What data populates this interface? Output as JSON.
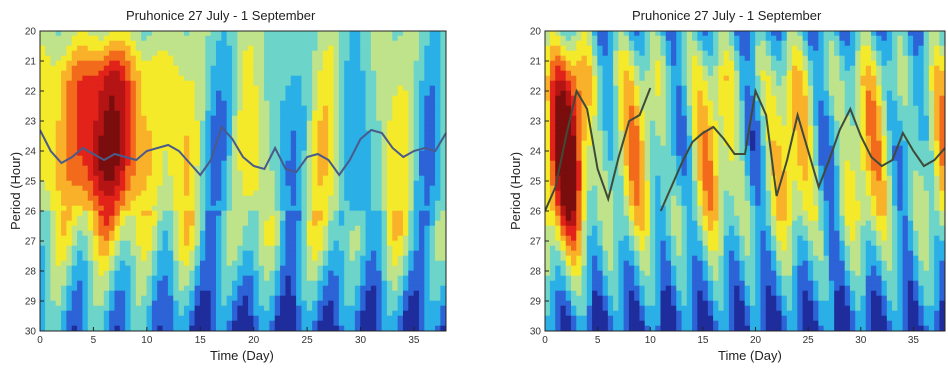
{
  "chart_data": [
    {
      "type": "heatmap",
      "title": "Pruhonice 27 July - 1 September",
      "xlabel": "Time (Day)",
      "ylabel": "Period (Hour)",
      "xlim": [
        0,
        38
      ],
      "ylim": [
        20,
        30
      ],
      "y_inverted": true,
      "xticks": [
        0,
        5,
        10,
        15,
        20,
        25,
        30,
        35
      ],
      "yticks": [
        20,
        21,
        22,
        23,
        24,
        25,
        26,
        27,
        28,
        29,
        30
      ],
      "colormap": [
        "#1e2c9c",
        "#2c63d6",
        "#2ab0e6",
        "#6cd4c8",
        "#bfe38a",
        "#f4ea2a",
        "#f9b12a",
        "#f26a1b",
        "#e2231a",
        "#b51414",
        "#7a0d0d"
      ],
      "ridge_color": "#4a5a8a",
      "ridge": [
        {
          "x": [
            0,
            1,
            2,
            3,
            4,
            5,
            6,
            7,
            8,
            9,
            10,
            11,
            12,
            13,
            14,
            15,
            16,
            17,
            18,
            19,
            20,
            21,
            22,
            23,
            24,
            25,
            26,
            27,
            28,
            29,
            30,
            31,
            32,
            33,
            34,
            35,
            36,
            37,
            38
          ],
          "y": [
            23.3,
            24.0,
            24.4,
            24.2,
            23.9,
            24.1,
            24.3,
            24.1,
            24.2,
            24.3,
            24.0,
            23.9,
            23.8,
            24.0,
            24.4,
            24.8,
            24.3,
            23.2,
            23.6,
            24.2,
            24.5,
            24.6,
            23.9,
            24.6,
            24.7,
            24.2,
            24.1,
            24.3,
            24.8,
            24.3,
            23.6,
            23.3,
            23.4,
            23.9,
            24.2,
            24.0,
            23.9,
            24.0,
            23.4
          ]
        }
      ]
    },
    {
      "type": "heatmap",
      "title": "Pruhonice 27 July - 1 September",
      "xlabel": "Time (Day)",
      "ylabel": "Period (Hour)",
      "xlim": [
        0,
        38
      ],
      "ylim": [
        20,
        30
      ],
      "y_inverted": true,
      "xticks": [
        0,
        5,
        10,
        15,
        20,
        25,
        30,
        35
      ],
      "yticks": [
        20,
        21,
        22,
        23,
        24,
        25,
        26,
        27,
        28,
        29,
        30
      ],
      "colormap": [
        "#1e2c9c",
        "#2c63d6",
        "#2ab0e6",
        "#6cd4c8",
        "#bfe38a",
        "#f4ea2a",
        "#f9b12a",
        "#f26a1b",
        "#e2231a",
        "#b51414",
        "#7a0d0d"
      ],
      "ridge_color": "#3f4a3a",
      "ridge": [
        {
          "x": [
            0,
            1,
            2,
            3,
            4,
            5,
            6,
            7,
            8,
            9,
            10
          ],
          "y": [
            26.0,
            25.2,
            23.5,
            22.0,
            22.6,
            24.6,
            25.6,
            24.2,
            23.0,
            22.8,
            21.9
          ]
        },
        {
          "x": [
            11,
            12,
            13,
            14,
            15,
            16,
            17,
            18,
            19,
            20,
            21,
            22,
            23,
            24,
            25,
            26,
            27,
            28,
            29,
            30,
            31,
            32,
            33,
            34,
            35,
            36,
            37,
            38
          ],
          "y": [
            26.0,
            25.2,
            24.4,
            23.7,
            23.4,
            23.2,
            23.6,
            24.1,
            24.1,
            22.0,
            22.8,
            25.5,
            24.3,
            22.8,
            24.0,
            25.2,
            24.3,
            23.3,
            22.6,
            23.5,
            24.2,
            24.5,
            24.3,
            23.4,
            24.0,
            24.5,
            24.3,
            23.9
          ]
        }
      ]
    }
  ]
}
